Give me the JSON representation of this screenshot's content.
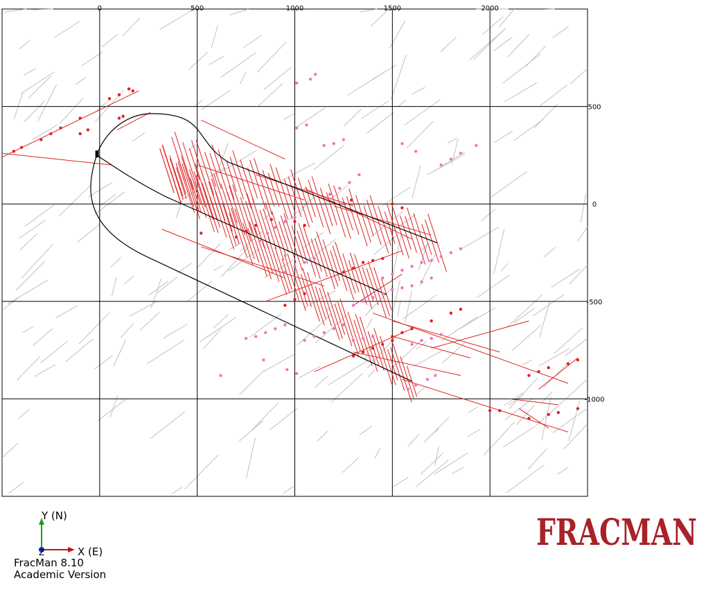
{
  "app": {
    "version": "FracMan 8.10",
    "edition": "Academic Version",
    "logo_text": "FRACMAN"
  },
  "axes_triad": {
    "y_label": "Y (N)",
    "x_label": "X (E)",
    "z_label": "Z"
  },
  "colors": {
    "grid": "#000000",
    "background_fractures": "#c0c0c0",
    "stage_fractures": "#dd2222",
    "microseismic_events": "#ee77bb",
    "wellbore": "#000000",
    "logo": "#a82228"
  },
  "chart_data": {
    "type": "scatter",
    "view": "plan view (map)",
    "x_ticks": [
      0,
      500,
      1000,
      1500,
      2000
    ],
    "y_ticks": [
      500,
      0,
      -500,
      -1000
    ],
    "x_tick_labels": [
      "0",
      "500",
      "1000",
      "1500",
      "2000"
    ],
    "y_tick_labels": [
      "500",
      "0",
      "-500",
      "-1000"
    ],
    "xlim": [
      -500,
      2500
    ],
    "ylim": [
      -1500,
      1000
    ],
    "grid": true,
    "wellbores": [
      {
        "name": "lateral-upper",
        "heel": [
          -15,
          250
        ],
        "toe": [
          1730,
          -200
        ]
      },
      {
        "name": "lateral-middle",
        "heel": [
          -15,
          250
        ],
        "toe": [
          1470,
          -465
        ]
      },
      {
        "name": "lateral-lower",
        "heel": [
          -15,
          250
        ],
        "toe": [
          1600,
          -910
        ]
      }
    ],
    "fracture_swarms": [
      {
        "center": [
          1030,
          90
        ],
        "half_length": 130,
        "strike_deg": 107,
        "dip_azimuth_spread": 0,
        "count": 50
      },
      {
        "center": [
          900,
          -170
        ],
        "half_length": 120,
        "strike_deg": 107,
        "count": 48
      },
      {
        "center": [
          860,
          -530
        ],
        "half_length": 120,
        "strike_deg": 107,
        "count": 52
      }
    ],
    "microseismic_points": [
      [
        1010,
        620
      ],
      [
        1080,
        640
      ],
      [
        1105,
        665
      ],
      [
        1010,
        390
      ],
      [
        1060,
        405
      ],
      [
        1150,
        300
      ],
      [
        1200,
        310
      ],
      [
        1250,
        330
      ],
      [
        1550,
        310
      ],
      [
        1620,
        270
      ],
      [
        1750,
        200
      ],
      [
        1800,
        230
      ],
      [
        1850,
        260
      ],
      [
        1930,
        300
      ],
      [
        1180,
        50
      ],
      [
        1230,
        80
      ],
      [
        1280,
        110
      ],
      [
        1330,
        150
      ],
      [
        950,
        -90
      ],
      [
        1000,
        -70
      ],
      [
        900,
        -120
      ],
      [
        860,
        -150
      ],
      [
        820,
        -190
      ],
      [
        950,
        -350
      ],
      [
        1000,
        -320
      ],
      [
        1050,
        -300
      ],
      [
        1100,
        -280
      ],
      [
        1450,
        -380
      ],
      [
        1500,
        -360
      ],
      [
        1550,
        -340
      ],
      [
        1600,
        -320
      ],
      [
        1650,
        -300
      ],
      [
        1700,
        -290
      ],
      [
        1750,
        -270
      ],
      [
        1800,
        -250
      ],
      [
        1850,
        -230
      ],
      [
        1300,
        -520
      ],
      [
        1350,
        -500
      ],
      [
        1400,
        -480
      ],
      [
        1450,
        -460
      ],
      [
        1500,
        -440
      ],
      [
        1550,
        -430
      ],
      [
        1600,
        -420
      ],
      [
        1650,
        -400
      ],
      [
        1700,
        -380
      ],
      [
        750,
        -690
      ],
      [
        800,
        -680
      ],
      [
        850,
        -660
      ],
      [
        900,
        -640
      ],
      [
        950,
        -620
      ],
      [
        1050,
        -700
      ],
      [
        1100,
        -680
      ],
      [
        1150,
        -660
      ],
      [
        1200,
        -640
      ],
      [
        1250,
        -620
      ],
      [
        1300,
        -700
      ],
      [
        1350,
        -690
      ],
      [
        1400,
        -680
      ],
      [
        1600,
        -720
      ],
      [
        1650,
        -700
      ],
      [
        1700,
        -690
      ],
      [
        1750,
        -670
      ],
      [
        1580,
        -950
      ],
      [
        1620,
        -930
      ],
      [
        1680,
        -900
      ],
      [
        1720,
        -880
      ],
      [
        620,
        -880
      ],
      [
        960,
        -850
      ],
      [
        1010,
        -870
      ],
      [
        840,
        -800
      ]
    ],
    "stage_points": [
      [
        -440,
        270
      ],
      [
        -400,
        290
      ],
      [
        -300,
        330
      ],
      [
        -250,
        360
      ],
      [
        -200,
        390
      ],
      [
        -100,
        440
      ],
      [
        50,
        540
      ],
      [
        100,
        560
      ],
      [
        150,
        590
      ],
      [
        170,
        580
      ],
      [
        -100,
        360
      ],
      [
        -60,
        380
      ],
      [
        100,
        440
      ],
      [
        120,
        450
      ],
      [
        1290,
        20
      ],
      [
        1500,
        0
      ],
      [
        1550,
        -20
      ],
      [
        1050,
        -110
      ],
      [
        1000,
        -90
      ],
      [
        880,
        -80
      ],
      [
        800,
        -110
      ],
      [
        750,
        -140
      ],
      [
        700,
        -170
      ],
      [
        520,
        -150
      ],
      [
        1350,
        -300
      ],
      [
        1400,
        -290
      ],
      [
        1450,
        -280
      ],
      [
        1300,
        -330
      ],
      [
        1250,
        -350
      ],
      [
        1050,
        -460
      ],
      [
        1000,
        -490
      ],
      [
        950,
        -520
      ],
      [
        1500,
        -680
      ],
      [
        1550,
        -660
      ],
      [
        1600,
        -640
      ],
      [
        1700,
        -600
      ],
      [
        1800,
        -560
      ],
      [
        1850,
        -540
      ],
      [
        1300,
        -780
      ],
      [
        1350,
        -760
      ],
      [
        1400,
        -740
      ],
      [
        1450,
        -720
      ],
      [
        1500,
        -700
      ],
      [
        2200,
        -880
      ],
      [
        2250,
        -860
      ],
      [
        2300,
        -840
      ],
      [
        2400,
        -820
      ],
      [
        2450,
        -800
      ],
      [
        2000,
        -1060
      ],
      [
        2050,
        -1060
      ],
      [
        2200,
        -1100
      ],
      [
        2300,
        -1080
      ],
      [
        2350,
        -1070
      ],
      [
        2450,
        -1050
      ]
    ]
  }
}
